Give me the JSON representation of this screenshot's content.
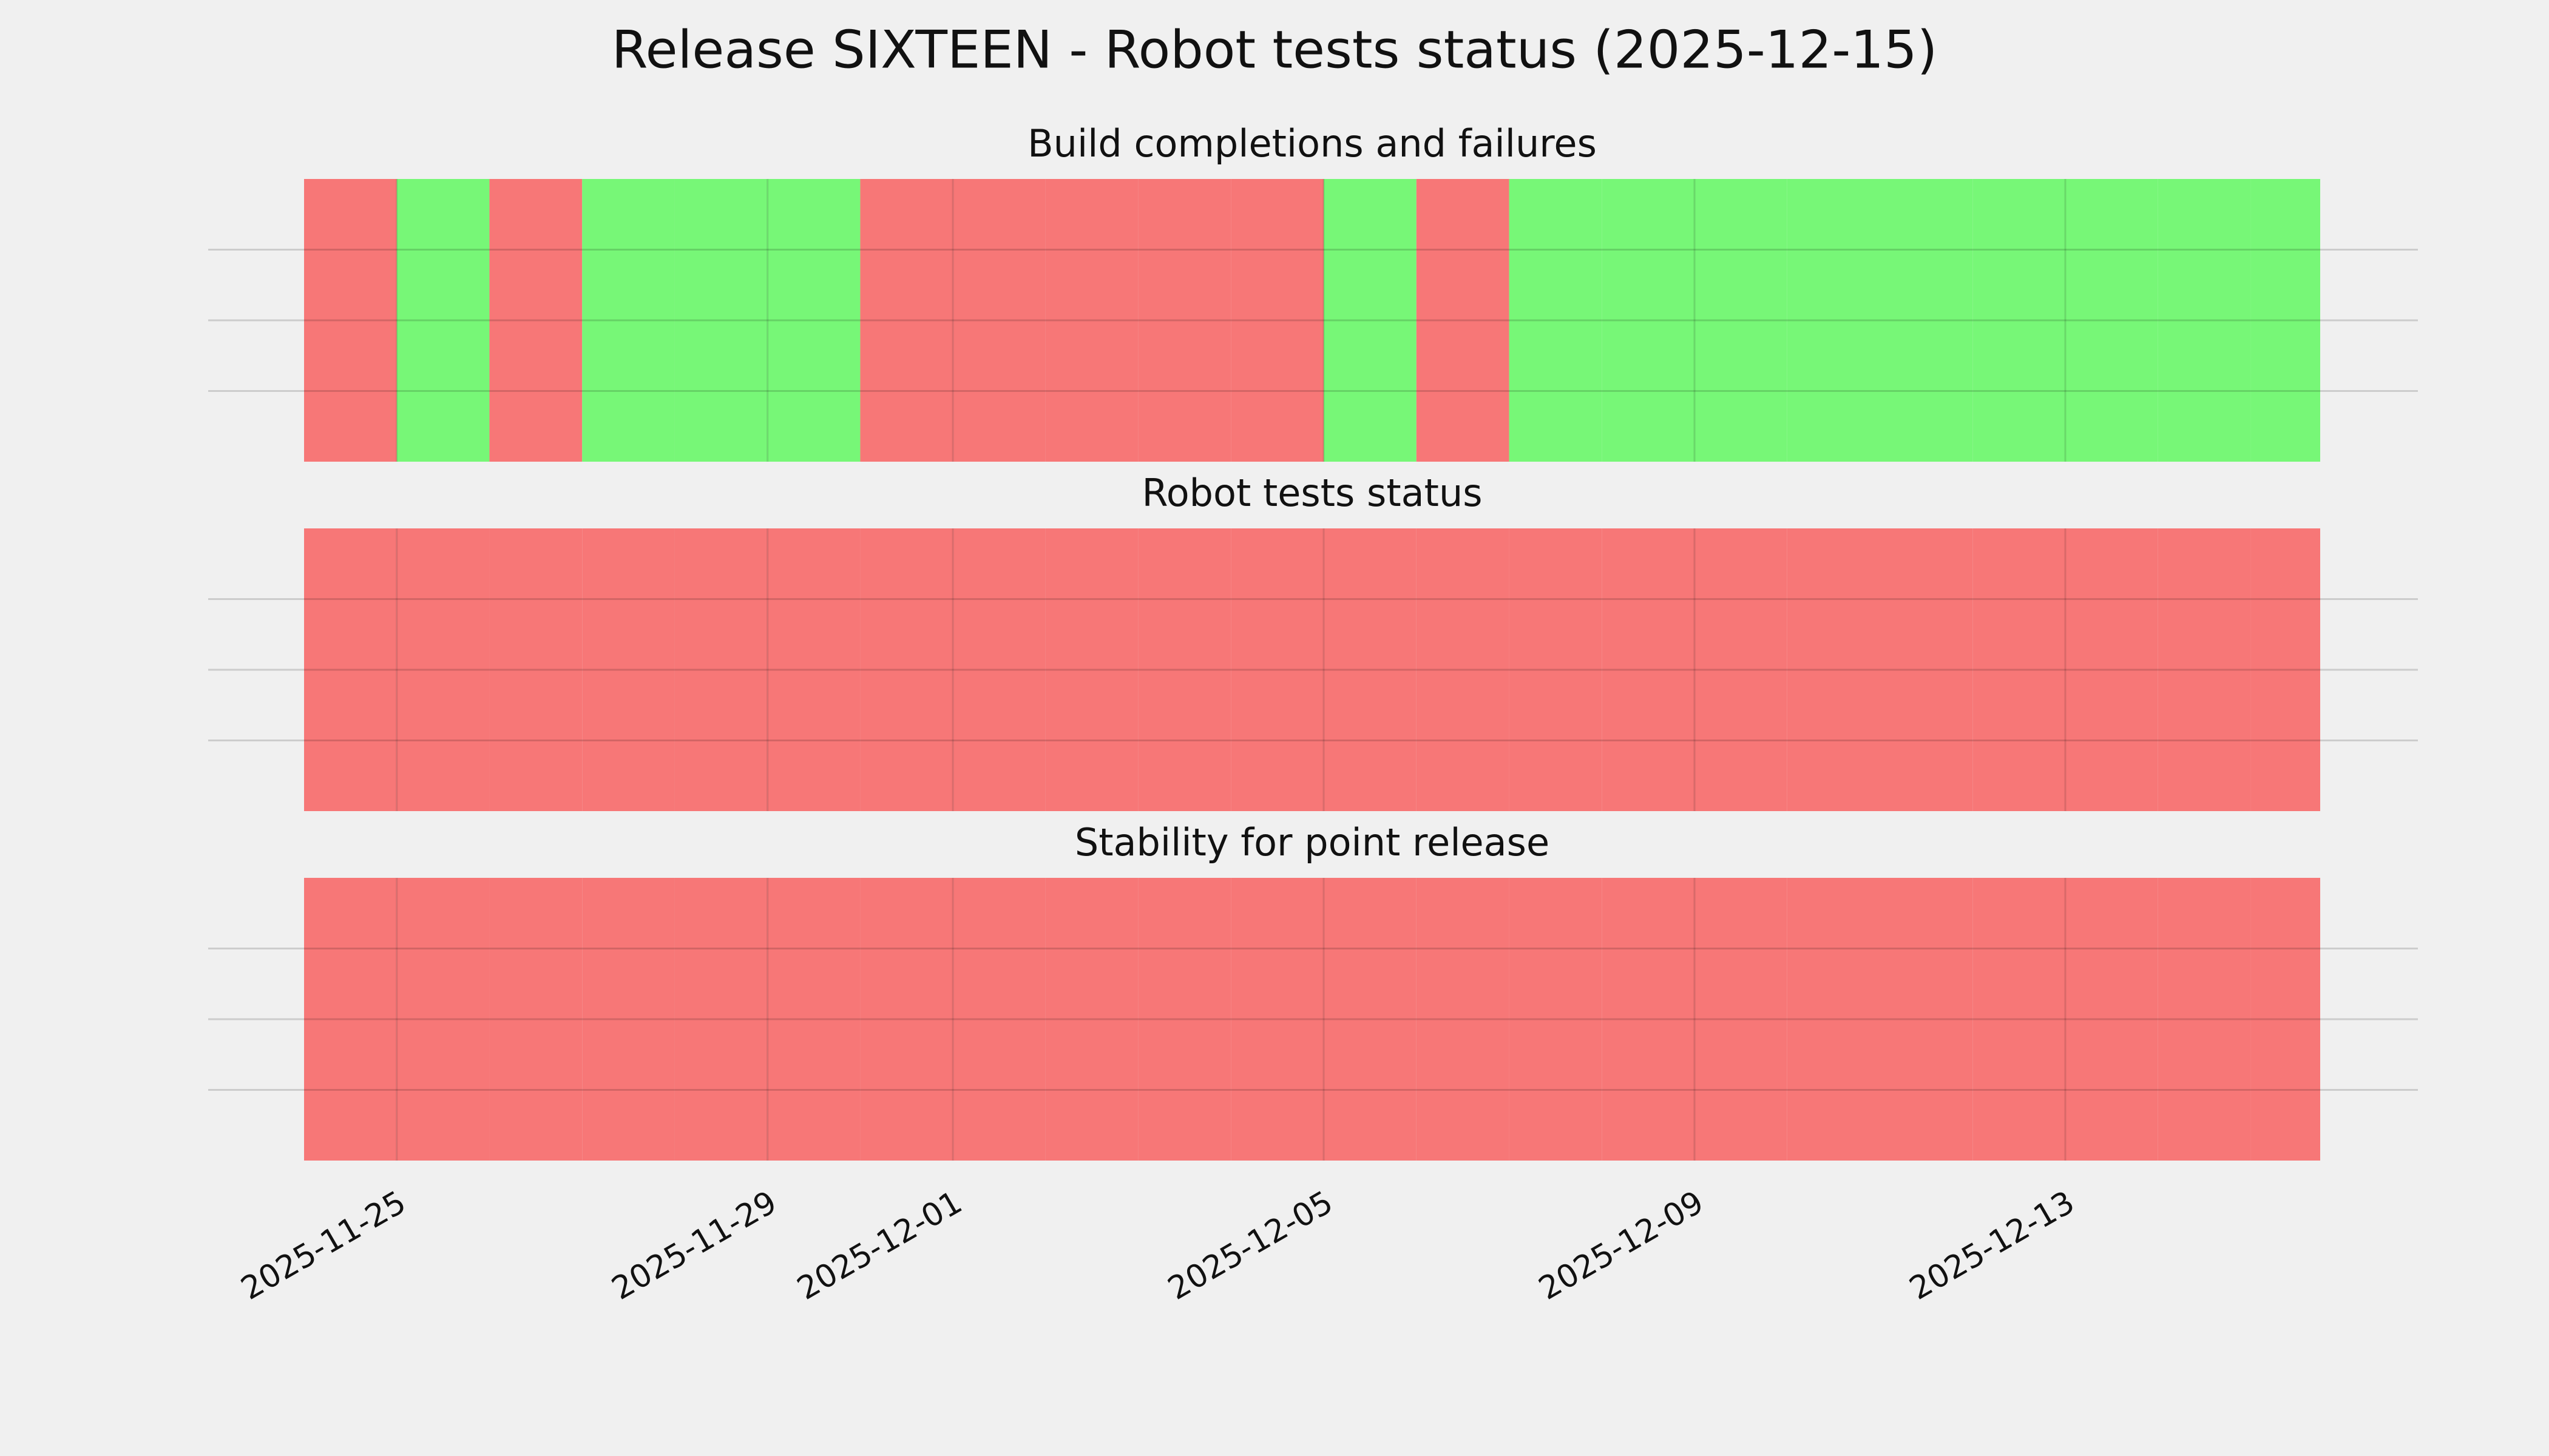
{
  "chart_data": {
    "type": "status-strip",
    "title": "Release SIXTEEN - Robot tests status (2025-12-15)",
    "x": [
      "2025-11-24",
      "2025-11-25",
      "2025-11-26",
      "2025-11-27",
      "2025-11-28",
      "2025-11-29",
      "2025-11-30",
      "2025-12-01",
      "2025-12-02",
      "2025-12-03",
      "2025-12-04",
      "2025-12-05",
      "2025-12-06",
      "2025-12-07",
      "2025-12-08",
      "2025-12-09",
      "2025-12-10",
      "2025-12-11",
      "2025-12-12",
      "2025-12-13",
      "2025-12-14",
      "2025-12-15"
    ],
    "xlim": [
      "2025-11-24",
      "2025-12-15T18:00"
    ],
    "xticks": [
      "2025-11-25",
      "2025-11-29",
      "2025-12-01",
      "2025-12-05",
      "2025-12-09",
      "2025-12-13"
    ],
    "ylim": [
      0,
      1
    ],
    "yticks": [
      0.25,
      0.5,
      0.75
    ],
    "grid": true,
    "status_colors": [
      "#f77777",
      "#77f777"
    ],
    "panels": [
      {
        "title": "Build completions and failures",
        "values": [
          0,
          1,
          0,
          1,
          1,
          1,
          0,
          0,
          0,
          0,
          0,
          1,
          0,
          1,
          1,
          1,
          1,
          1,
          1,
          1,
          1,
          1
        ]
      },
      {
        "title": "Robot tests status",
        "values": [
          0,
          0,
          0,
          0,
          0,
          0,
          0,
          0,
          0,
          0,
          0,
          0,
          0,
          0,
          0,
          0,
          0,
          0,
          0,
          0,
          0,
          0
        ]
      },
      {
        "title": "Stability for point release",
        "values": [
          0,
          0,
          0,
          0,
          0,
          0,
          0,
          0,
          0,
          0,
          0,
          0,
          0,
          0,
          0,
          0,
          0,
          0,
          0,
          0,
          0,
          0
        ]
      }
    ]
  }
}
